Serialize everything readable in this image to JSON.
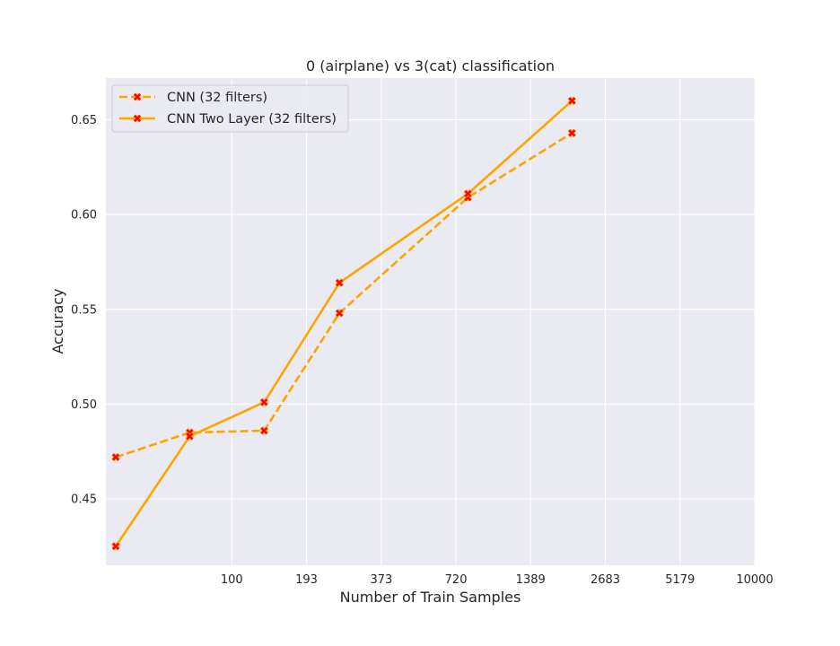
{
  "chart_data": {
    "type": "line",
    "title": "0 (airplane) vs 3(cat) classification",
    "xlabel": "Number of Train Samples",
    "ylabel": "Accuracy",
    "x_scale": "log",
    "x_ticks": [
      100,
      193,
      373,
      720,
      1389,
      2683,
      5179,
      10000
    ],
    "y_ticks": [
      0.45,
      0.5,
      0.55,
      0.6,
      0.65
    ],
    "xlim": [
      33,
      10000
    ],
    "ylim": [
      0.415,
      0.672
    ],
    "grid": true,
    "legend_position": "top-left",
    "background": "#eaeaf2",
    "series_color": "#ffa500",
    "marker_color": "#ff0000",
    "x": [
      36,
      69,
      133,
      258,
      800,
      2000
    ],
    "series": [
      {
        "name": "CNN (32 filters)",
        "style": "dashed",
        "values": [
          0.472,
          0.485,
          0.486,
          0.548,
          0.609,
          0.643
        ]
      },
      {
        "name": "CNN Two Layer (32 filters)",
        "style": "solid",
        "values": [
          0.425,
          0.483,
          0.501,
          0.564,
          0.611,
          0.66
        ]
      }
    ]
  }
}
